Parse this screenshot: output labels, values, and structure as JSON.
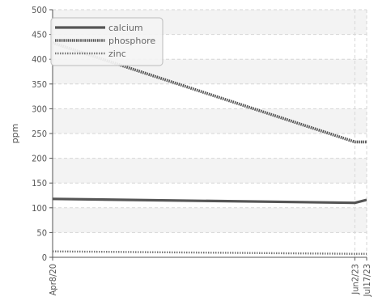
{
  "chart_data": {
    "type": "line",
    "title": "",
    "xlabel": "",
    "ylabel": "ppm",
    "ylim": [
      0,
      500
    ],
    "yticks": [
      "0",
      "50",
      "100",
      "150",
      "200",
      "250",
      "300",
      "350",
      "400",
      "450",
      "500"
    ],
    "categories": [
      "Apr8/20",
      "Jun2/23",
      "Jul17/23"
    ],
    "x_days": [
      0,
      1150,
      1195
    ],
    "grid": true,
    "legend_position": "top-left",
    "series": [
      {
        "name": "calcium",
        "values": [
          118,
          110,
          116
        ],
        "color": "#555555",
        "style": "solid"
      },
      {
        "name": "phosphore",
        "values": [
          433,
          233,
          233
        ],
        "color": "#555555",
        "style": "dense-dotted"
      },
      {
        "name": "zinc",
        "values": [
          12,
          7,
          7
        ],
        "color": "#777777",
        "style": "dotted"
      }
    ]
  }
}
